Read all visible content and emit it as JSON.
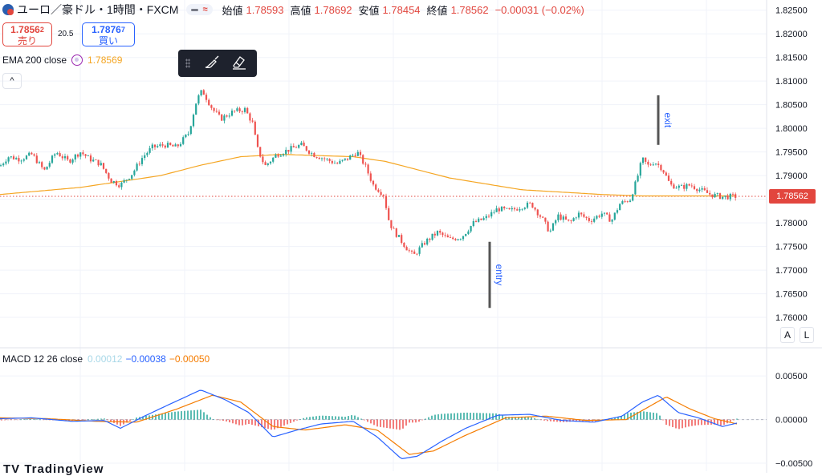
{
  "header": {
    "symbol": "ユーロ／豪ドル・1時間・FXCM",
    "open_label": "始値",
    "open": "1.78593",
    "high_label": "高値",
    "high": "1.78692",
    "low_label": "安値",
    "low": "1.78454",
    "close_label": "終値",
    "close": "1.78562",
    "change": "−0.00031 (−0.02%)",
    "wave_icon": "≈"
  },
  "trade": {
    "sell_price": "1.7856",
    "sell_sup": "2",
    "sell_label": "売り",
    "spread": "20.5",
    "buy_price": "1.7876",
    "buy_sup": "7",
    "buy_label": "買い"
  },
  "ema": {
    "label": "EMA 200 close",
    "value": "1.78569",
    "color": "#f5a623"
  },
  "collapse_icon": "^",
  "toolbar": {
    "icons": [
      "grip-icon",
      "brush-icon",
      "eraser-icon"
    ]
  },
  "macd": {
    "label": "MACD 12 26 close",
    "hist": "0.00012",
    "macd": "−0.00038",
    "signal": "−0.00050",
    "colors": {
      "macd": "#2962ff",
      "signal": "#f57c00",
      "hist_up": "#26a69a",
      "hist_down": "#ef5350"
    }
  },
  "scale_buttons": {
    "auto": "A",
    "log": "L"
  },
  "last_price_tag": "1.78562",
  "watermark": "TV TradingView",
  "chart_data": {
    "type": "candlestick",
    "y_ticks_price": [
      "1.82500",
      "1.82000",
      "1.81500",
      "1.81000",
      "1.80500",
      "1.80000",
      "1.79500",
      "1.79000",
      "1.78500",
      "1.78000",
      "1.77500",
      "1.77000",
      "1.76500",
      "1.76000"
    ],
    "y_ticks_macd": [
      "0.00500",
      "0.00000",
      "−0.00500"
    ],
    "ylim_price": [
      1.7595,
      1.8258
    ],
    "ylim_macd": [
      -0.005,
      0.0052
    ],
    "colors": {
      "up": "#26a69a",
      "down": "#ef5350",
      "ema": "#f5a623",
      "last": "#e2463e"
    },
    "anchors_close": [
      [
        0,
        1.792
      ],
      [
        10,
        1.794
      ],
      [
        25,
        1.7935
      ],
      [
        40,
        1.7945
      ],
      [
        55,
        1.791
      ],
      [
        70,
        1.795
      ],
      [
        85,
        1.793
      ],
      [
        100,
        1.795
      ],
      [
        112,
        1.7935
      ],
      [
        125,
        1.7925
      ],
      [
        138,
        1.789
      ],
      [
        150,
        1.788
      ],
      [
        165,
        1.7905
      ],
      [
        178,
        1.794
      ],
      [
        190,
        1.796
      ],
      [
        205,
        1.7965
      ],
      [
        220,
        1.796
      ],
      [
        235,
        1.799
      ],
      [
        245,
        1.806
      ],
      [
        252,
        1.808
      ],
      [
        265,
        1.804
      ],
      [
        275,
        1.802
      ],
      [
        290,
        1.8035
      ],
      [
        305,
        1.804
      ],
      [
        315,
        1.801
      ],
      [
        320,
        1.796
      ],
      [
        330,
        1.792
      ],
      [
        345,
        1.7945
      ],
      [
        360,
        1.7955
      ],
      [
        375,
        1.7965
      ],
      [
        390,
        1.7945
      ],
      [
        405,
        1.7935
      ],
      [
        420,
        1.7925
      ],
      [
        432,
        1.7935
      ],
      [
        445,
        1.795
      ],
      [
        455,
        1.792
      ],
      [
        465,
        1.788
      ],
      [
        478,
        1.786
      ],
      [
        485,
        1.78
      ],
      [
        492,
        1.778
      ],
      [
        505,
        1.775
      ],
      [
        515,
        1.773
      ],
      [
        530,
        1.776
      ],
      [
        545,
        1.778
      ],
      [
        560,
        1.7765
      ],
      [
        575,
        1.777
      ],
      [
        590,
        1.78
      ],
      [
        605,
        1.781
      ],
      [
        620,
        1.783
      ],
      [
        635,
        1.7825
      ],
      [
        650,
        1.7835
      ],
      [
        662,
        1.784
      ],
      [
        675,
        1.781
      ],
      [
        685,
        1.778
      ],
      [
        695,
        1.7815
      ],
      [
        710,
        1.78
      ],
      [
        720,
        1.782
      ],
      [
        735,
        1.7805
      ],
      [
        750,
        1.782
      ],
      [
        762,
        1.7805
      ],
      [
        772,
        1.784
      ],
      [
        785,
        1.785
      ],
      [
        793,
        1.789
      ],
      [
        800,
        1.7935
      ],
      [
        808,
        1.792
      ],
      [
        815,
        1.793
      ],
      [
        825,
        1.7915
      ],
      [
        835,
        1.788
      ],
      [
        848,
        1.7875
      ],
      [
        860,
        1.788
      ],
      [
        872,
        1.787
      ],
      [
        885,
        1.786
      ],
      [
        900,
        1.7855
      ],
      [
        918,
        1.7856
      ]
    ],
    "ema_anchors": [
      [
        0,
        1.786
      ],
      [
        100,
        1.7875
      ],
      [
        200,
        1.79
      ],
      [
        250,
        1.7922
      ],
      [
        300,
        1.794
      ],
      [
        350,
        1.7945
      ],
      [
        440,
        1.794
      ],
      [
        480,
        1.793
      ],
      [
        560,
        1.7895
      ],
      [
        650,
        1.787
      ],
      [
        750,
        1.786
      ],
      [
        800,
        1.7857
      ],
      [
        860,
        1.7857
      ],
      [
        918,
        1.78569
      ]
    ],
    "macd_anchors": [
      [
        0,
        0.0001
      ],
      [
        40,
        0.0002
      ],
      [
        90,
        -0.0002
      ],
      [
        130,
        -0.0001
      ],
      [
        150,
        -0.001
      ],
      [
        180,
        0.0004
      ],
      [
        210,
        0.0017
      ],
      [
        250,
        0.0034
      ],
      [
        280,
        0.0023
      ],
      [
        310,
        0.0008
      ],
      [
        340,
        -0.002
      ],
      [
        370,
        -0.0012
      ],
      [
        400,
        -0.0005
      ],
      [
        440,
        -0.0002
      ],
      [
        470,
        -0.002
      ],
      [
        500,
        -0.0045
      ],
      [
        520,
        -0.0042
      ],
      [
        550,
        -0.0025
      ],
      [
        580,
        -0.001
      ],
      [
        620,
        0.0005
      ],
      [
        660,
        0.0006
      ],
      [
        700,
        -0.0001
      ],
      [
        740,
        -0.0003
      ],
      [
        775,
        0.0004
      ],
      [
        800,
        0.002
      ],
      [
        820,
        0.0028
      ],
      [
        845,
        0.0008
      ],
      [
        870,
        0.0002
      ],
      [
        900,
        -0.0008
      ],
      [
        918,
        -0.0004
      ]
    ],
    "signal_anchors": [
      [
        0,
        0.0002
      ],
      [
        60,
        0.0001
      ],
      [
        120,
        -0.0002
      ],
      [
        170,
        -0.0003
      ],
      [
        220,
        0.0012
      ],
      [
        265,
        0.0028
      ],
      [
        300,
        0.002
      ],
      [
        340,
        -0.0008
      ],
      [
        380,
        -0.0012
      ],
      [
        430,
        -0.0006
      ],
      [
        470,
        -0.0012
      ],
      [
        510,
        -0.004
      ],
      [
        540,
        -0.0036
      ],
      [
        580,
        -0.0018
      ],
      [
        630,
        0.0002
      ],
      [
        680,
        0.0004
      ],
      [
        730,
        -0.0001
      ],
      [
        780,
        0.0
      ],
      [
        830,
        0.0026
      ],
      [
        860,
        0.0012
      ],
      [
        890,
        0.0001
      ],
      [
        918,
        -0.0005
      ]
    ],
    "annotations": [
      {
        "text": "exit",
        "x": 820,
        "y_top": 1.807,
        "y_bottom": 1.7965
      },
      {
        "text": "entry",
        "x": 610,
        "y_top": 1.776,
        "y_bottom": 1.762
      }
    ],
    "hline": 1.78562
  }
}
